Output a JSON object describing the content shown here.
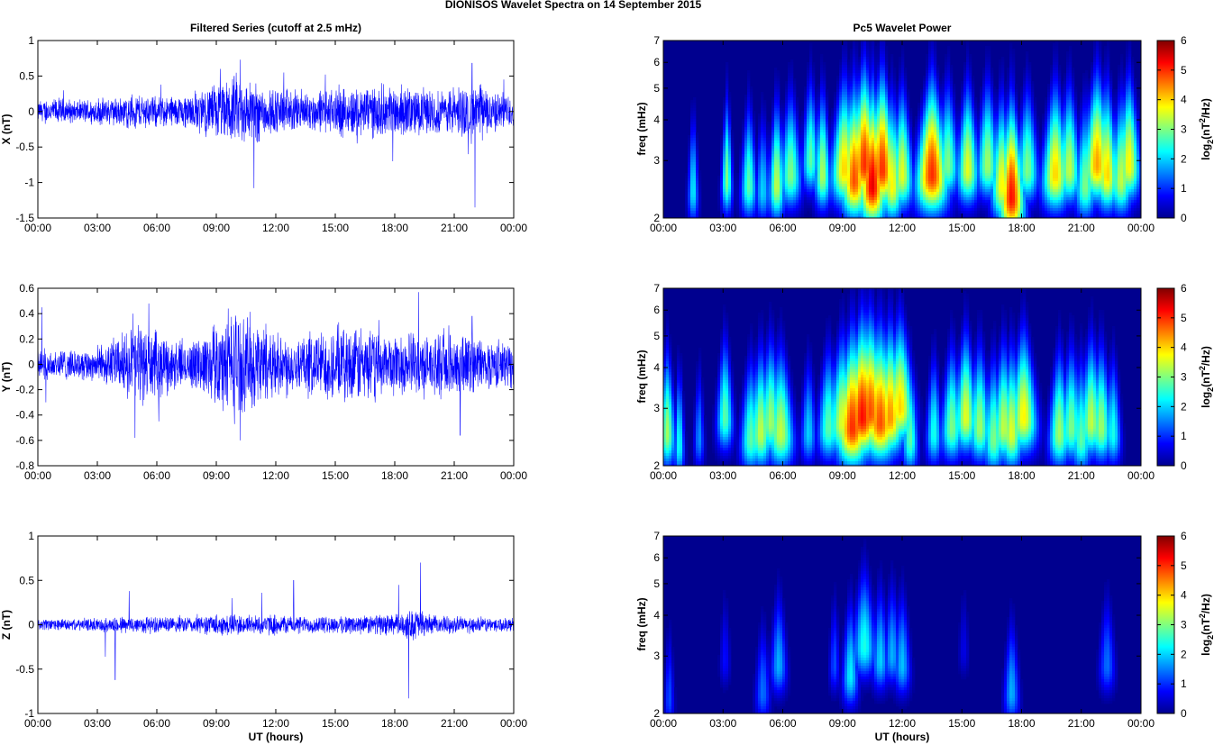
{
  "figure_title": "DIONISOS Wavelet Spectra on 14 September 2015",
  "left_column_title": "Filtered Series (cutoff at 2.5 mHz)",
  "right_column_title": "Pc5 Wavelet Power",
  "x_tick_labels": [
    "00:00",
    "03:00",
    "06:00",
    "09:00",
    "12:00",
    "15:00",
    "18:00",
    "21:00",
    "00:00"
  ],
  "colors": {
    "trace": "#0000ff",
    "background_jet": "#00008f"
  },
  "chart_data": [
    {
      "type": "line",
      "title": "",
      "ylabel": "X (nT)",
      "xlabel": "",
      "xlim": [
        0,
        24
      ],
      "ylim": [
        -1.5,
        1
      ],
      "yticks": [
        "-1.5",
        "-1",
        "-0.5",
        "0",
        "0.5",
        "1"
      ],
      "envelope": [
        [
          0,
          0.18
        ],
        [
          1,
          0.2
        ],
        [
          2,
          0.16
        ],
        [
          3,
          0.2
        ],
        [
          4,
          0.22
        ],
        [
          5,
          0.26
        ],
        [
          6,
          0.24
        ],
        [
          7,
          0.25
        ],
        [
          8,
          0.3
        ],
        [
          9,
          0.42
        ],
        [
          10,
          0.55
        ],
        [
          11,
          0.45
        ],
        [
          12,
          0.35
        ],
        [
          13,
          0.32
        ],
        [
          14,
          0.3
        ],
        [
          15,
          0.35
        ],
        [
          16,
          0.4
        ],
        [
          17,
          0.38
        ],
        [
          18,
          0.4
        ],
        [
          19,
          0.36
        ],
        [
          20,
          0.32
        ],
        [
          21,
          0.35
        ],
        [
          22,
          0.45
        ],
        [
          23,
          0.3
        ],
        [
          24,
          0.25
        ]
      ],
      "spikes": [
        [
          1.3,
          0.3
        ],
        [
          6.2,
          0.38
        ],
        [
          9.2,
          0.6
        ],
        [
          10.2,
          0.73
        ],
        [
          10.9,
          -1.08
        ],
        [
          12.4,
          0.55
        ],
        [
          14.5,
          0.52
        ],
        [
          16.1,
          -0.45
        ],
        [
          17.9,
          -0.7
        ],
        [
          21.7,
          -0.6
        ],
        [
          21.9,
          0.68
        ],
        [
          22.05,
          -1.35
        ],
        [
          23.5,
          0.45
        ]
      ]
    },
    {
      "type": "line",
      "title": "",
      "ylabel": "Y (nT)",
      "xlabel": "",
      "xlim": [
        0,
        24
      ],
      "ylim": [
        -0.8,
        0.6
      ],
      "yticks": [
        "-0.8",
        "-0.6",
        "-0.4",
        "-0.2",
        "0",
        "0.2",
        "0.4",
        "0.6"
      ],
      "envelope": [
        [
          0,
          0.12
        ],
        [
          1,
          0.14
        ],
        [
          2,
          0.12
        ],
        [
          3,
          0.16
        ],
        [
          4,
          0.22
        ],
        [
          5,
          0.34
        ],
        [
          6,
          0.28
        ],
        [
          7,
          0.2
        ],
        [
          8,
          0.22
        ],
        [
          9,
          0.36
        ],
        [
          10,
          0.46
        ],
        [
          11,
          0.38
        ],
        [
          12,
          0.28
        ],
        [
          13,
          0.24
        ],
        [
          14,
          0.28
        ],
        [
          15,
          0.3
        ],
        [
          16,
          0.32
        ],
        [
          17,
          0.3
        ],
        [
          18,
          0.26
        ],
        [
          19,
          0.28
        ],
        [
          20,
          0.24
        ],
        [
          21,
          0.3
        ],
        [
          22,
          0.24
        ],
        [
          23,
          0.2
        ],
        [
          24,
          0.18
        ]
      ],
      "spikes": [
        [
          0.2,
          0.45
        ],
        [
          0.4,
          -0.3
        ],
        [
          4.8,
          0.4
        ],
        [
          4.9,
          -0.58
        ],
        [
          5.6,
          0.48
        ],
        [
          6.1,
          -0.45
        ],
        [
          9.6,
          0.44
        ],
        [
          10.2,
          -0.6
        ],
        [
          11.5,
          0.32
        ],
        [
          12.1,
          0.25
        ],
        [
          15.4,
          0.26
        ],
        [
          17.2,
          0.35
        ],
        [
          19.2,
          0.57
        ],
        [
          21.3,
          -0.56
        ],
        [
          21.9,
          0.38
        ]
      ]
    },
    {
      "type": "line",
      "title": "",
      "ylabel": "Z (nT)",
      "xlabel": "UT (hours)",
      "xlim": [
        0,
        24
      ],
      "ylim": [
        -1,
        1
      ],
      "yticks": [
        "-1",
        "-0.5",
        "0",
        "0.5",
        "1"
      ],
      "envelope": [
        [
          0,
          0.07
        ],
        [
          1,
          0.07
        ],
        [
          2,
          0.07
        ],
        [
          3,
          0.08
        ],
        [
          4,
          0.1
        ],
        [
          5,
          0.11
        ],
        [
          6,
          0.1
        ],
        [
          7,
          0.1
        ],
        [
          8,
          0.11
        ],
        [
          9,
          0.13
        ],
        [
          10,
          0.13
        ],
        [
          11,
          0.12
        ],
        [
          12,
          0.12
        ],
        [
          13,
          0.11
        ],
        [
          14,
          0.1
        ],
        [
          15,
          0.11
        ],
        [
          16,
          0.12
        ],
        [
          17,
          0.12
        ],
        [
          18,
          0.13
        ],
        [
          19,
          0.2
        ],
        [
          20,
          0.11
        ],
        [
          21,
          0.1
        ],
        [
          22,
          0.1
        ],
        [
          23,
          0.09
        ],
        [
          24,
          0.08
        ]
      ],
      "spikes": [
        [
          3.4,
          -0.36
        ],
        [
          3.9,
          -0.62
        ],
        [
          4.6,
          0.38
        ],
        [
          9.8,
          0.3
        ],
        [
          11.3,
          0.36
        ],
        [
          12.9,
          0.5
        ],
        [
          18.2,
          0.45
        ],
        [
          18.7,
          -0.83
        ],
        [
          19.3,
          0.7
        ]
      ]
    },
    {
      "type": "heatmap",
      "title": "",
      "ylabel": "freq (mHz)",
      "xlabel": "",
      "xlim": [
        0,
        24
      ],
      "ylim": [
        2,
        7
      ],
      "yscale": "log",
      "yticks": [
        "2",
        "3",
        "4",
        "5",
        "6",
        "7"
      ],
      "colorbar_label": "log2(nT^2/Hz)",
      "clim": [
        0,
        6
      ],
      "colorbar_ticks": [
        "0",
        "1",
        "2",
        "3",
        "4",
        "5",
        "6"
      ],
      "blobs": [
        [
          1.5,
          2.4,
          2.2,
          0.2
        ],
        [
          3.2,
          2.6,
          3.0,
          0.2
        ],
        [
          4.3,
          2.5,
          2.8,
          0.3
        ],
        [
          5,
          2.4,
          2.0,
          0.3
        ],
        [
          5.7,
          2.5,
          3.4,
          0.3
        ],
        [
          6.4,
          2.7,
          3.0,
          0.4
        ],
        [
          7.4,
          3.0,
          2.8,
          0.3
        ],
        [
          8,
          2.7,
          3.3,
          0.3
        ],
        [
          9.1,
          2.8,
          4.0,
          0.5
        ],
        [
          9.6,
          2.6,
          4.8,
          0.5
        ],
        [
          10.1,
          2.9,
          5.0,
          0.5
        ],
        [
          10.5,
          2.5,
          5.4,
          0.5
        ],
        [
          11,
          2.8,
          5.0,
          0.5
        ],
        [
          11.5,
          2.5,
          3.8,
          0.4
        ],
        [
          12,
          2.7,
          3.6,
          0.4
        ],
        [
          13.5,
          2.7,
          5.0,
          0.6
        ],
        [
          14.3,
          2.9,
          3.0,
          0.4
        ],
        [
          15.3,
          2.8,
          3.6,
          0.4
        ],
        [
          16.3,
          2.9,
          3.2,
          0.4
        ],
        [
          17,
          2.5,
          3.8,
          0.4
        ],
        [
          17.5,
          2.3,
          5.2,
          0.5
        ],
        [
          18.3,
          2.8,
          3.0,
          0.4
        ],
        [
          19.7,
          2.7,
          4.0,
          0.5
        ],
        [
          20.4,
          2.8,
          3.4,
          0.4
        ],
        [
          21.2,
          2.5,
          3.0,
          0.4
        ],
        [
          21.8,
          2.9,
          4.3,
          0.5
        ],
        [
          22.3,
          2.7,
          4.0,
          0.4
        ],
        [
          23,
          2.6,
          3.4,
          0.4
        ],
        [
          23.4,
          2.9,
          3.8,
          0.4
        ]
      ]
    },
    {
      "type": "heatmap",
      "title": "",
      "ylabel": "freq (mHz)",
      "xlabel": "",
      "xlim": [
        0,
        24
      ],
      "ylim": [
        2,
        7
      ],
      "yscale": "log",
      "yticks": [
        "2",
        "3",
        "4",
        "5",
        "6",
        "7"
      ],
      "colorbar_label": "log2(nT^2/Hz)",
      "clim": [
        0,
        6
      ],
      "colorbar_ticks": [
        "0",
        "1",
        "2",
        "3",
        "4",
        "5",
        "6"
      ],
      "blobs": [
        [
          0.2,
          2.5,
          3.2,
          0.3
        ],
        [
          0.8,
          2.3,
          2.4,
          0.2
        ],
        [
          1.8,
          2.4,
          1.6,
          0.2
        ],
        [
          3.1,
          2.8,
          2.8,
          0.3
        ],
        [
          4.4,
          2.4,
          2.8,
          0.4
        ],
        [
          4.9,
          2.5,
          3.4,
          0.4
        ],
        [
          5.4,
          2.7,
          3.2,
          0.4
        ],
        [
          5.9,
          2.5,
          3.4,
          0.5
        ],
        [
          7.3,
          2.5,
          2.0,
          0.3
        ],
        [
          8.3,
          2.6,
          2.8,
          0.4
        ],
        [
          9,
          2.7,
          3.6,
          0.5
        ],
        [
          9.5,
          2.6,
          5.0,
          0.6
        ],
        [
          10,
          2.8,
          5.2,
          0.6
        ],
        [
          10.4,
          2.9,
          4.8,
          0.6
        ],
        [
          10.9,
          2.7,
          4.8,
          0.6
        ],
        [
          11.4,
          2.8,
          4.4,
          0.5
        ],
        [
          11.9,
          3.0,
          4.0,
          0.5
        ],
        [
          12.4,
          2.4,
          2.8,
          0.3
        ],
        [
          13.6,
          2.5,
          2.4,
          0.3
        ],
        [
          14.5,
          2.6,
          3.0,
          0.4
        ],
        [
          15.2,
          2.8,
          3.6,
          0.4
        ],
        [
          15.9,
          2.6,
          3.2,
          0.4
        ],
        [
          16.6,
          2.4,
          3.0,
          0.4
        ],
        [
          17.1,
          2.6,
          3.4,
          0.4
        ],
        [
          17.5,
          2.5,
          3.6,
          0.4
        ],
        [
          18.1,
          2.8,
          3.8,
          0.5
        ],
        [
          19.9,
          2.5,
          3.2,
          0.4
        ],
        [
          20.5,
          2.6,
          3.0,
          0.4
        ],
        [
          21.0,
          2.4,
          2.8,
          0.4
        ],
        [
          21.5,
          2.7,
          3.4,
          0.4
        ],
        [
          22,
          2.6,
          3.2,
          0.4
        ],
        [
          22.6,
          2.5,
          2.4,
          0.3
        ]
      ]
    },
    {
      "type": "heatmap",
      "title": "",
      "ylabel": "freq (mHz)",
      "xlabel": "UT (hours)",
      "xlim": [
        0,
        24
      ],
      "ylim": [
        2,
        7
      ],
      "yscale": "log",
      "yticks": [
        "2",
        "3",
        "4",
        "5",
        "6",
        "7"
      ],
      "colorbar_label": "log2(nT^2/Hz)",
      "clim": [
        0,
        6
      ],
      "colorbar_ticks": [
        "0",
        "1",
        "2",
        "3",
        "4",
        "5",
        "6"
      ],
      "blobs": [
        [
          0.3,
          2.2,
          1.2,
          0.2
        ],
        [
          3.1,
          2.9,
          0.8,
          0.2
        ],
        [
          5.0,
          2.3,
          1.4,
          0.3
        ],
        [
          5.8,
          2.8,
          1.8,
          0.3
        ],
        [
          8.6,
          2.8,
          1.2,
          0.2
        ],
        [
          9.4,
          2.6,
          2.2,
          0.3
        ],
        [
          10.1,
          3.2,
          2.4,
          0.4
        ],
        [
          10.9,
          2.9,
          2.0,
          0.3
        ],
        [
          11.5,
          3.0,
          1.8,
          0.3
        ],
        [
          12.0,
          2.8,
          1.9,
          0.3
        ],
        [
          15.1,
          3.1,
          0.6,
          0.2
        ],
        [
          17.5,
          2.3,
          1.8,
          0.3
        ],
        [
          22.3,
          2.8,
          1.4,
          0.3
        ]
      ]
    }
  ]
}
